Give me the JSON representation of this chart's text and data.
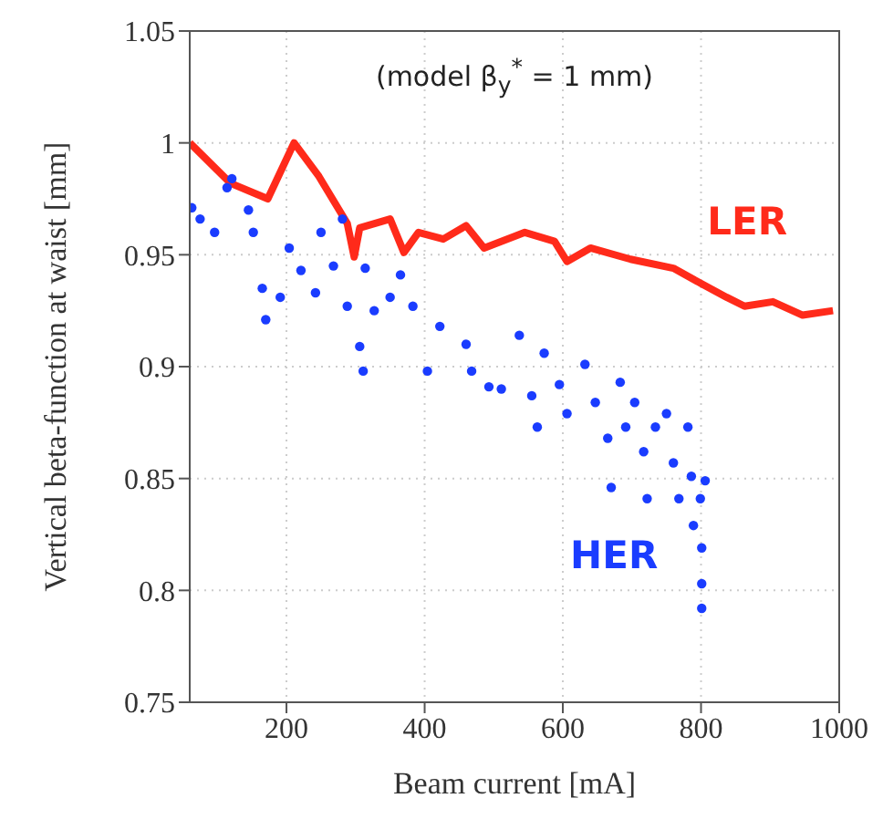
{
  "chart_data": {
    "type": "line",
    "xlabel": "Beam current [mA]",
    "ylabel": "Vertical beta-function at waist [mm]",
    "annotations": [
      "(model β$_{y}$$^{*}$ = 1 mm)"
    ],
    "xlim": [
      60,
      1000
    ],
    "xticks": [
      200,
      400,
      600,
      800,
      1000
    ],
    "ylim": [
      0.75,
      1.05
    ],
    "yticks": [
      0.75,
      0.8,
      0.85,
      0.9,
      0.95,
      1,
      1.05
    ],
    "grid": true,
    "series": [
      {
        "name": "LER",
        "marker": "none",
        "color": "#ff2a1a",
        "x": [
          60,
          119,
          173,
          211,
          247,
          288,
          298,
          306,
          350,
          370,
          391,
          427,
          460,
          486,
          545,
          588,
          606,
          640,
          698,
          760,
          801,
          837,
          863,
          904,
          947,
          991
        ],
        "values": [
          1.0,
          0.982,
          0.975,
          1.0,
          0.985,
          0.964,
          0.949,
          0.962,
          0.966,
          0.951,
          0.96,
          0.957,
          0.963,
          0.953,
          0.96,
          0.956,
          0.947,
          0.953,
          0.948,
          0.944,
          0.937,
          0.931,
          0.927,
          0.929,
          0.923,
          0.925
        ]
      },
      {
        "name": "HER",
        "type": "scatter",
        "marker": "circle",
        "color": "#1a3cff",
        "x": [
          63,
          75,
          96,
          114,
          121,
          145,
          152,
          165,
          170,
          191,
          204,
          221,
          242,
          250,
          268,
          281,
          288,
          306,
          311,
          314,
          327,
          350,
          365,
          383,
          404,
          422,
          460,
          468,
          493,
          511,
          537,
          555,
          563,
          573,
          595,
          606,
          632,
          647,
          665,
          670,
          683,
          691,
          704,
          717,
          722,
          734,
          750,
          760,
          768,
          781,
          786,
          789,
          799,
          801,
          801,
          801,
          806
        ],
        "values": [
          0.971,
          0.966,
          0.96,
          0.98,
          0.984,
          0.97,
          0.96,
          0.935,
          0.921,
          0.931,
          0.953,
          0.943,
          0.933,
          0.96,
          0.945,
          0.966,
          0.927,
          0.909,
          0.898,
          0.944,
          0.925,
          0.931,
          0.941,
          0.927,
          0.898,
          0.918,
          0.91,
          0.898,
          0.891,
          0.89,
          0.914,
          0.887,
          0.873,
          0.906,
          0.892,
          0.879,
          0.901,
          0.884,
          0.868,
          0.846,
          0.893,
          0.873,
          0.884,
          0.862,
          0.841,
          0.873,
          0.879,
          0.857,
          0.841,
          0.873,
          0.851,
          0.829,
          0.841,
          0.819,
          0.803,
          0.792,
          0.849
        ]
      }
    ]
  }
}
